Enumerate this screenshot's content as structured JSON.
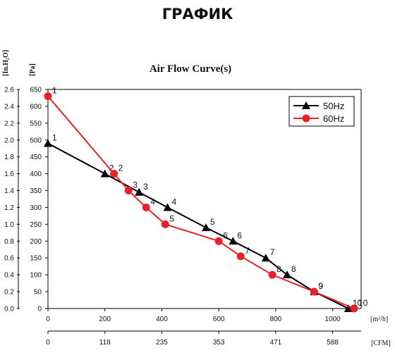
{
  "page": {
    "heading": "ГРАФИК"
  },
  "chart_data": {
    "type": "line",
    "title": "Air Flow Curve(s)",
    "xlabel": "[m³/h]",
    "xlabel_secondary": "[CFM]",
    "ylabel_left": "[In.H₂O]",
    "ylabel_right": "[Pa]",
    "xlim": [
      0,
      1100
    ],
    "ylim": [
      0,
      650
    ],
    "x_ticks": [
      0,
      200,
      400,
      600,
      800,
      1000
    ],
    "x_secondary_ticks": [
      "0",
      "118",
      "235",
      "353",
      "471",
      "588"
    ],
    "y_ticks": [
      0,
      50,
      100,
      150,
      200,
      250,
      300,
      350,
      400,
      450,
      500,
      550,
      600,
      650
    ],
    "y_inh2o_ticks": [
      "0.0",
      "0.2",
      "0.4",
      "0.6",
      "0.8",
      "1.0",
      "1.2",
      "1.4",
      "1.6",
      "1.8",
      "2.0",
      "2.2",
      "2.4",
      "2.6"
    ],
    "grid": false,
    "legend_position": "top-right",
    "series": [
      {
        "name": "50Hz",
        "color": "#000000",
        "marker": "triangle",
        "point_labels": [
          "1",
          "2",
          "3",
          "4",
          "5",
          "6",
          "7",
          "8",
          "9",
          "10"
        ],
        "x": [
          0,
          200,
          320,
          420,
          555,
          650,
          765,
          840,
          935,
          1055
        ],
        "y": [
          490,
          400,
          345,
          300,
          240,
          200,
          150,
          100,
          50,
          0
        ]
      },
      {
        "name": "60Hz",
        "color": "#e8202a",
        "marker": "circle",
        "point_labels": [
          "1",
          "2",
          "3",
          "4",
          "5",
          "6",
          "7",
          "8",
          "9",
          "10"
        ],
        "x": [
          0,
          232,
          283,
          345,
          412,
          600,
          677,
          788,
          935,
          1075
        ],
        "y": [
          630,
          400,
          350,
          300,
          250,
          200,
          155,
          100,
          50,
          0
        ]
      }
    ]
  }
}
